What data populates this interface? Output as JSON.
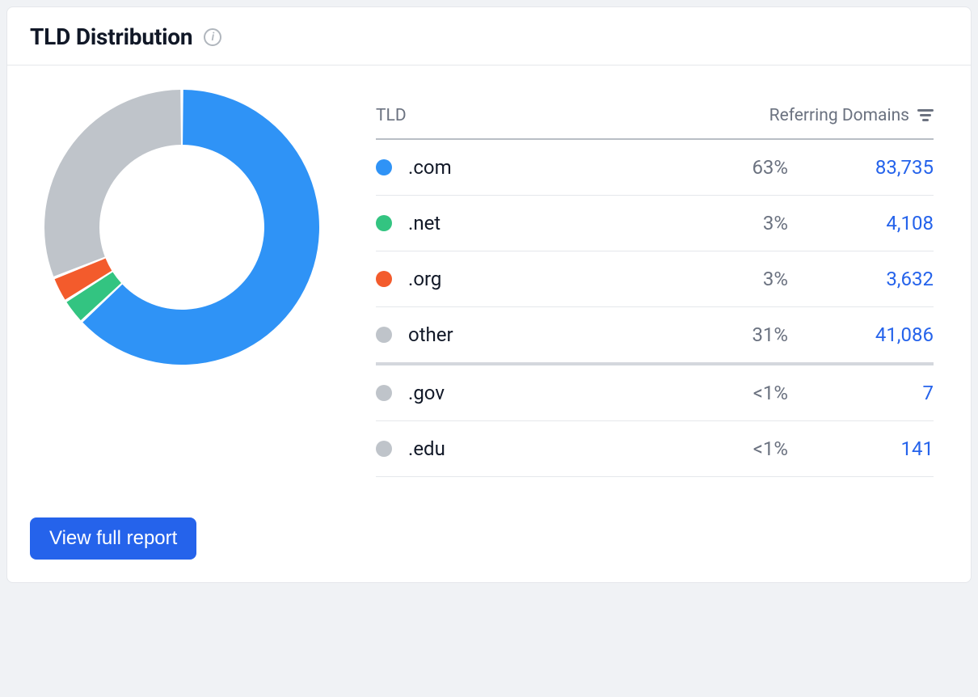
{
  "card": {
    "title": "TLD Distribution",
    "info_tooltip": "i",
    "footer_button": "View full report"
  },
  "table": {
    "columns": {
      "tld": "TLD",
      "referring": "Referring Domains"
    },
    "rows": [
      {
        "label": ".com",
        "percent": "63%",
        "value": "83,735",
        "swatch": "#2f93f6",
        "sep": "thin"
      },
      {
        "label": ".net",
        "percent": "3%",
        "value": "4,108",
        "swatch": "#33c481",
        "sep": "thin"
      },
      {
        "label": ".org",
        "percent": "3%",
        "value": "3,632",
        "swatch": "#f35b2c",
        "sep": "thin"
      },
      {
        "label": "other",
        "percent": "31%",
        "value": "41,086",
        "swatch": "#bfc4ca",
        "sep": "thick"
      },
      {
        "label": ".gov",
        "percent": "<1%",
        "value": "7",
        "swatch": "#bfc4ca",
        "sep": "thin"
      },
      {
        "label": ".edu",
        "percent": "<1%",
        "value": "141",
        "swatch": "#bfc4ca",
        "sep": "thin"
      }
    ]
  },
  "donut": {
    "type": "donut",
    "outer_radius": 170,
    "inner_radius": 102,
    "gap_degrees": 1.2,
    "start_angle_deg": -90,
    "background": "#ffffff",
    "segments": [
      {
        "name": ".com",
        "value": 63,
        "color": "#2f93f6"
      },
      {
        "name": ".net",
        "value": 3,
        "color": "#33c481"
      },
      {
        "name": ".org",
        "value": 3,
        "color": "#f35b2c"
      },
      {
        "name": "other",
        "value": 31,
        "color": "#bfc4ca"
      }
    ]
  },
  "colors": {
    "card_border": "#e5e7eb",
    "page_bg": "#f0f2f5",
    "text": "#111827",
    "muted": "#6b7280",
    "accent": "#2563eb",
    "row_sep_thin": "#e5e7eb",
    "row_sep_thick": "#d4d7dd",
    "header_sep": "#b9bec5",
    "info_icon": "#b0b6bd"
  },
  "typography": {
    "title_fontsize_pt": 21,
    "label_fontsize_pt": 18,
    "header_fontsize_pt": 16,
    "button_fontsize_pt": 18,
    "font_family": "-apple-system, Segoe UI, Roboto, Helvetica, Arial, sans-serif"
  }
}
